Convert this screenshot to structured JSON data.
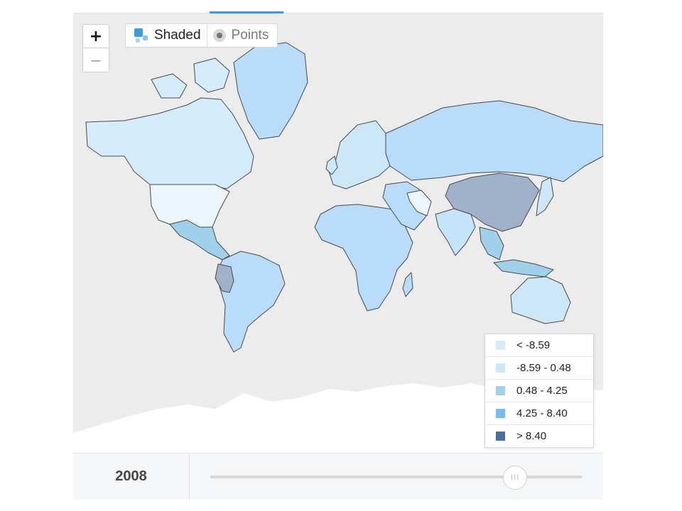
{
  "map_tabs": {
    "active_indicator_color": "#3d99e0"
  },
  "zoom": {
    "in_label": "+",
    "out_label": "−"
  },
  "mode_toggle": {
    "shaded_label": "Shaded",
    "points_label": "Points",
    "selected": "Shaded",
    "shaded_icon": "shaded-squares-icon",
    "points_icon": "points-dot-icon"
  },
  "legend": {
    "items": [
      {
        "label": "< -8.59",
        "color": "#d4ecfb"
      },
      {
        "label": "-8.59 - 0.48",
        "color": "#cce8f8"
      },
      {
        "label": "0.48 - 4.25",
        "color": "#9fd1eb"
      },
      {
        "label": "4.25 - 8.40",
        "color": "#75bdf5"
      },
      {
        "label": "> 8.40",
        "color": "#4a6f9c"
      }
    ]
  },
  "timeline": {
    "year": "2008",
    "position_fraction": 0.82,
    "handle_icon": "grip-lines-icon",
    "handle_label": "III"
  },
  "colors": {
    "ocean": "#ececec",
    "antarctica": "#ffffff",
    "border": "#4a4a4a",
    "accent": "#3d99e0"
  },
  "regions": [
    {
      "name": "north-america",
      "color": "#d4ecfb"
    },
    {
      "name": "usa",
      "color": "#ecf6fd"
    },
    {
      "name": "greenland",
      "color": "#b9dcfa"
    },
    {
      "name": "central-america",
      "color": "#9fd1eb"
    },
    {
      "name": "south-america",
      "color": "#b9dcfa"
    },
    {
      "name": "peru",
      "color": "#9fb2c9"
    },
    {
      "name": "europe",
      "color": "#cce8f8"
    },
    {
      "name": "russia",
      "color": "#b9dcfa"
    },
    {
      "name": "africa",
      "color": "#b9dcfa"
    },
    {
      "name": "middle-east",
      "color": "#b9dcfa"
    },
    {
      "name": "iran",
      "color": "#ecf6fd"
    },
    {
      "name": "china",
      "color": "#9fb2c9"
    },
    {
      "name": "india",
      "color": "#c6e4f9"
    },
    {
      "name": "southeast-asia",
      "color": "#9fd1eb"
    },
    {
      "name": "japan",
      "color": "#cce8f8"
    },
    {
      "name": "australia",
      "color": "#cce8f8"
    },
    {
      "name": "antarctica",
      "color": "#ffffff"
    }
  ]
}
